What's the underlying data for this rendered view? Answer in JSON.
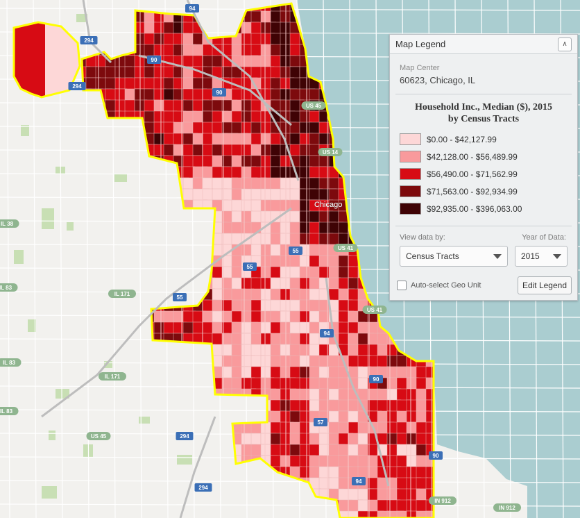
{
  "map": {
    "city_label": "Chicago",
    "colors": {
      "water": "#aacdd0",
      "land": "#f2f1ee",
      "park": "#c8dfb4",
      "road": "#ffffff",
      "boundary": "#ffff00",
      "shield": "#8fb58f",
      "interstate": "#3b6fb6"
    },
    "shields": [
      {
        "label": "294",
        "kind": "interstate"
      },
      {
        "label": "94",
        "kind": "interstate"
      },
      {
        "label": "90",
        "kind": "interstate"
      },
      {
        "label": "294",
        "kind": "interstate"
      },
      {
        "label": "90",
        "kind": "interstate"
      },
      {
        "label": "US 45",
        "kind": "us"
      },
      {
        "label": "US 14",
        "kind": "us"
      },
      {
        "label": "IL 38",
        "kind": "state"
      },
      {
        "label": "US 41",
        "kind": "us"
      },
      {
        "label": "55",
        "kind": "interstate"
      },
      {
        "label": "55",
        "kind": "interstate"
      },
      {
        "label": "55",
        "kind": "interstate"
      },
      {
        "label": "IL 83",
        "kind": "state"
      },
      {
        "label": "IL 171",
        "kind": "state"
      },
      {
        "label": "US 41",
        "kind": "us"
      },
      {
        "label": "94",
        "kind": "interstate"
      },
      {
        "label": "IL 83",
        "kind": "state"
      },
      {
        "label": "IL 171",
        "kind": "state"
      },
      {
        "label": "90",
        "kind": "interstate"
      },
      {
        "label": "IL 83",
        "kind": "state"
      },
      {
        "label": "US 45",
        "kind": "us"
      },
      {
        "label": "294",
        "kind": "interstate"
      },
      {
        "label": "57",
        "kind": "interstate"
      },
      {
        "label": "94",
        "kind": "interstate"
      },
      {
        "label": "294",
        "kind": "interstate"
      },
      {
        "label": "90",
        "kind": "interstate"
      },
      {
        "label": "IN 912",
        "kind": "state"
      },
      {
        "label": "IN 912",
        "kind": "state"
      }
    ]
  },
  "legend": {
    "title": "Map Legend",
    "collapse_icon": "chevron-up-icon",
    "map_center_label": "Map Center",
    "map_center_value": "60623, Chicago, IL",
    "heading_line1": "Household Inc., Median ($), 2015",
    "heading_line2": "by Census Tracts",
    "classes": [
      {
        "label": "$0.00 - $42,127.99",
        "color": "#fdd7d7"
      },
      {
        "label": "$42,128.00 - $56,489.99",
        "color": "#f99a9c"
      },
      {
        "label": "$56,490.00 - $71,562.99",
        "color": "#d70b14"
      },
      {
        "label": "$71,563.00 - $92,934.99",
        "color": "#7d0a0d"
      },
      {
        "label": "$92,935.00 - $396,063.00",
        "color": "#3f0305"
      }
    ],
    "view_by_label": "View data by:",
    "view_by_value": "Census Tracts",
    "year_label": "Year of Data:",
    "year_value": "2015",
    "auto_select_label": "Auto-select Geo Unit",
    "edit_button": "Edit Legend"
  }
}
